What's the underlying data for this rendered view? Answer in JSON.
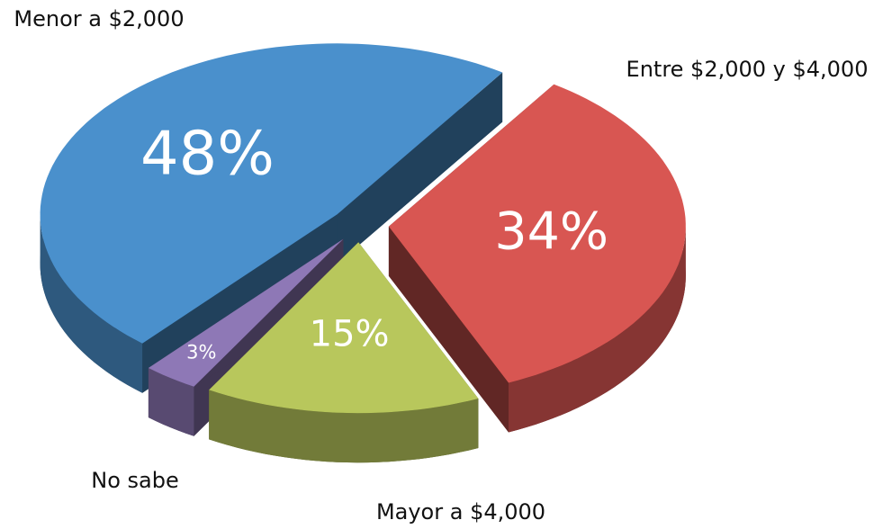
{
  "chart_data": {
    "type": "pie",
    "categories": [
      "Menor a $2,000",
      "Entre $2,000 y $4,000",
      "Mayor a $4,000",
      "No sabe"
    ],
    "values": [
      48,
      34,
      15,
      3
    ],
    "value_labels": [
      "48%",
      "34%",
      "15%",
      "3%"
    ],
    "colors": [
      "#4a90cc",
      "#d85652",
      "#b8c75c",
      "#8e78b6"
    ]
  }
}
